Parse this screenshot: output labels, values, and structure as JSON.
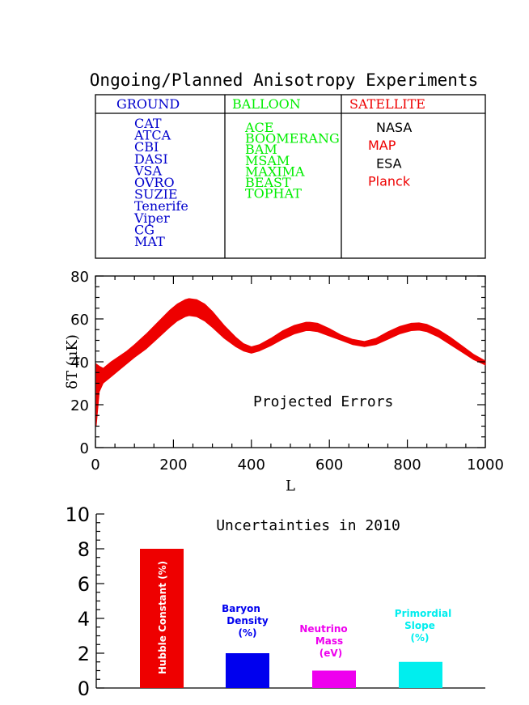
{
  "title": "Ongoing/Planned Anisotropy Experiments",
  "experiments_table": {
    "columns": [
      {
        "header": "GROUND",
        "color": "#0000cc",
        "items": [
          {
            "name": "CAT",
            "color": "#0000cc"
          },
          {
            "name": "ATCA",
            "color": "#0000cc"
          },
          {
            "name": "CBI",
            "color": "#0000cc"
          },
          {
            "name": "DASI",
            "color": "#0000cc"
          },
          {
            "name": "VSA",
            "color": "#0000cc"
          },
          {
            "name": "OVRO",
            "color": "#0000cc"
          },
          {
            "name": "SUZIE",
            "color": "#0000cc"
          },
          {
            "name": "Tenerife",
            "color": "#0000cc"
          },
          {
            "name": "Viper",
            "color": "#0000cc"
          },
          {
            "name": "CG",
            "color": "#0000cc"
          },
          {
            "name": "MAT",
            "color": "#0000cc"
          }
        ]
      },
      {
        "header": "BALLOON",
        "color": "#00ee00",
        "items": [
          {
            "name": "ACE",
            "color": "#00ee00"
          },
          {
            "name": "BOOMERANG",
            "color": "#00ee00"
          },
          {
            "name": "BAM",
            "color": "#00ee00"
          },
          {
            "name": "MSAM",
            "color": "#00ee00"
          },
          {
            "name": "MAXIMA",
            "color": "#00ee00"
          },
          {
            "name": "BEAST",
            "color": "#00ee00"
          },
          {
            "name": "TOPHAT",
            "color": "#00ee00"
          }
        ]
      },
      {
        "header": "SATELLITE",
        "color": "#ee0000",
        "items": [
          {
            "name": "NASA",
            "color": "#000000"
          },
          {
            "name": "MAP",
            "color": "#ee0000"
          },
          {
            "name": "ESA",
            "color": "#000000"
          },
          {
            "name": "Planck",
            "color": "#ee0000"
          }
        ]
      }
    ]
  },
  "chart_data": [
    {
      "type": "area",
      "xlabel": "L",
      "ylabel": "δT (μK)",
      "annotation": "Projected Errors",
      "xlim": [
        0,
        1000
      ],
      "ylim": [
        0,
        80
      ],
      "xticks": [
        0,
        200,
        400,
        600,
        800,
        1000
      ],
      "yticks": [
        0,
        20,
        40,
        60,
        80
      ],
      "color": "#ee0000",
      "series": [
        {
          "x": [
            2,
            10,
            20,
            40,
            60,
            80,
            100,
            130,
            160,
            190,
            210,
            230,
            240,
            260,
            280,
            300,
            330,
            360,
            380,
            400,
            420,
            450,
            480,
            510,
            540,
            550,
            570,
            600,
            630,
            660,
            690,
            720,
            750,
            780,
            810,
            830,
            850,
            880,
            910,
            940,
            970,
            1000
          ],
          "lower": [
            10,
            26,
            30,
            33,
            36,
            39,
            42,
            46,
            51,
            56,
            59,
            61,
            61.5,
            61,
            59,
            56,
            51,
            47,
            45,
            44,
            45,
            47.5,
            50.5,
            53,
            54.5,
            54.5,
            54,
            52,
            50,
            48,
            47,
            48,
            50.5,
            53,
            54.5,
            54.7,
            54,
            51.5,
            48,
            44.5,
            41,
            38.5
          ],
          "upper": [
            39,
            38,
            37,
            40,
            42.5,
            45,
            48,
            53,
            58.5,
            64,
            67,
            69,
            69.5,
            69,
            67,
            63.5,
            57,
            51.5,
            48.5,
            47,
            48,
            51,
            54.5,
            57,
            58.5,
            58.5,
            58,
            55.5,
            52.5,
            50.5,
            49.5,
            51,
            54,
            56.5,
            58,
            58.2,
            57.5,
            55,
            51.5,
            47.5,
            43.5,
            40.5
          ]
        }
      ]
    },
    {
      "type": "bar",
      "title": "Uncertainties in 2010",
      "ylim": [
        0,
        10
      ],
      "yticks": [
        0,
        2,
        4,
        6,
        8,
        10
      ],
      "categories": [
        "Hubble Constant (%)",
        "Baryon Density (%)",
        "Neutrino Mass (eV)",
        "Primordial Slope (%)"
      ],
      "values": [
        8,
        2,
        1,
        1.5
      ],
      "colors": [
        "#ee0000",
        "#0000ee",
        "#ee00ee",
        "#00eeee"
      ],
      "bar_labels": [
        {
          "lines": [
            "Hubble Constant (%)"
          ],
          "color": "#ffffff"
        },
        {
          "lines": [
            "Baryon",
            "Density",
            "(%)"
          ],
          "color": "#0000ee"
        },
        {
          "lines": [
            "Neutrino",
            "Mass",
            "(eV)"
          ],
          "color": "#ee00ee"
        },
        {
          "lines": [
            "Primordial",
            "Slope",
            "(%)"
          ],
          "color": "#00eeee"
        }
      ]
    }
  ]
}
